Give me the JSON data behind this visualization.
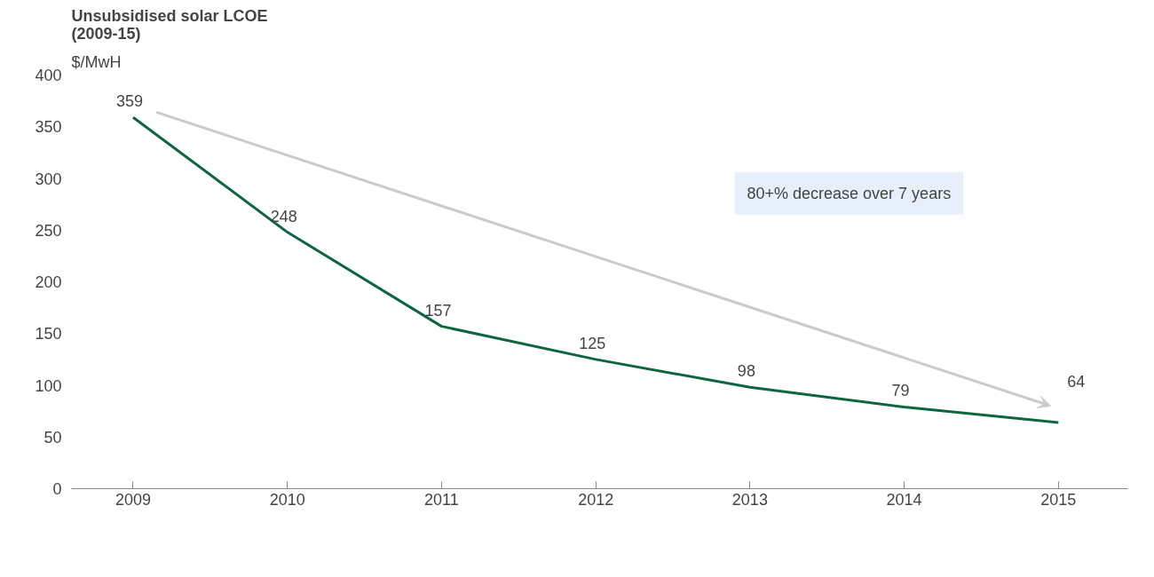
{
  "chart_data": {
    "type": "line",
    "title": "Unsubsidised solar LCOE\n(2009-15)",
    "ylabel": "$/MwH",
    "x": [
      2009,
      2010,
      2011,
      2012,
      2013,
      2014,
      2015
    ],
    "series": [
      {
        "color": "#0e6641",
        "values": [
          359,
          248,
          157,
          125,
          98,
          79,
          64
        ]
      }
    ],
    "data_labels": true,
    "xlim": [
      2008.6,
      2015.45
    ],
    "ylim": [
      0,
      400
    ],
    "xticks": [
      2009,
      2010,
      2011,
      2012,
      2013,
      2014,
      2015
    ],
    "yticks": [
      0,
      50,
      100,
      150,
      200,
      250,
      300,
      350,
      400
    ],
    "grid": false,
    "marker": "none",
    "line_style": "solid",
    "annotations": [
      "80+% decrease over 7 years"
    ]
  }
}
